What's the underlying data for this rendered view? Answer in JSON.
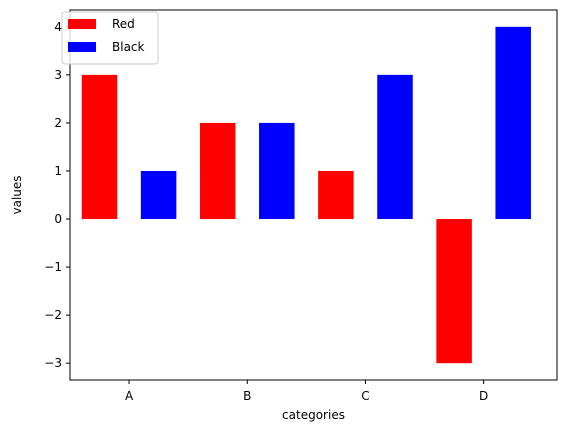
{
  "chart_data": {
    "type": "bar",
    "categories": [
      "A",
      "B",
      "C",
      "D"
    ],
    "series": [
      {
        "name": "Red",
        "color": "#ff0000",
        "values": [
          3,
          2,
          1,
          -3
        ]
      },
      {
        "name": "Black",
        "color": "#0000ff",
        "values": [
          1,
          2,
          3,
          4
        ]
      }
    ],
    "xlabel": "categories",
    "ylabel": "values",
    "ylim": [
      -3.35,
      4.35
    ],
    "yticks": [
      -3,
      -2,
      -1,
      0,
      1,
      2,
      3,
      4
    ],
    "ytick_labels": [
      "−3",
      "−2",
      "−1",
      "0",
      "1",
      "2",
      "3",
      "4"
    ],
    "grid": false,
    "legend": "top-left"
  }
}
